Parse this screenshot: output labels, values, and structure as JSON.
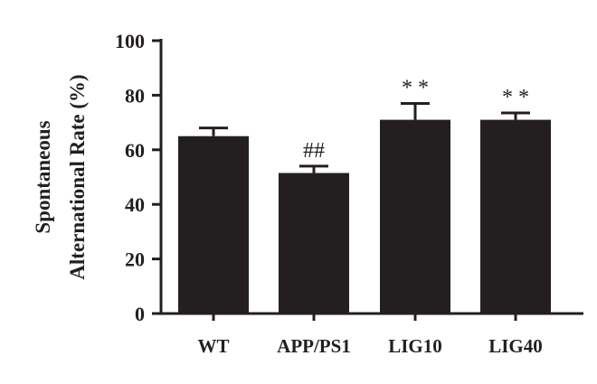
{
  "chart_data": {
    "type": "bar",
    "title": "",
    "xlabel": "",
    "ylabel_lines": [
      "Spontaneous",
      "Alternational Rate (%)"
    ],
    "ylim": [
      0,
      100
    ],
    "yticks": [
      0,
      20,
      40,
      60,
      80,
      100
    ],
    "categories": [
      "WT",
      "APP/PS1",
      "LIG10",
      "LIG40"
    ],
    "values": [
      65,
      51.5,
      71,
      71
    ],
    "errors": [
      3,
      2.5,
      6,
      2.5
    ],
    "annotations": [
      "",
      "##",
      "* *",
      "* *"
    ],
    "grid": false,
    "bar_color": "#231f20"
  }
}
